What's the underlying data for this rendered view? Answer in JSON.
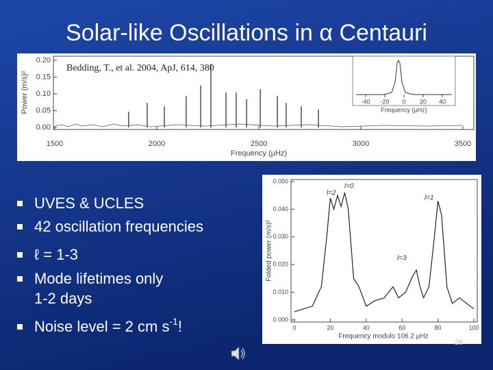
{
  "title": "Solar-like Oscillations in α Centauri",
  "top_chart": {
    "citation": "Bedding, T., et al. 2004, ApJ, 614, 380",
    "ylabel": "Power (m/s)²",
    "xlabel": "Frequency (μHz)",
    "xlim": [
      1500,
      3500
    ],
    "ylim": [
      0,
      0.2
    ],
    "xticks": [
      1500,
      2000,
      2500,
      3000,
      3500
    ],
    "yticks": [
      {
        "value": 0,
        "label": "0.00"
      },
      {
        "value": 0.05,
        "label": "0.05"
      },
      {
        "value": 0.1,
        "label": "0.10"
      },
      {
        "value": 0.15,
        "label": "0.15"
      },
      {
        "value": 0.2,
        "label": "0.20"
      }
    ],
    "peaks": {
      "frequency": [
        1862,
        1953,
        2037,
        2144,
        2215,
        2265,
        2339,
        2389,
        2440,
        2507,
        2591,
        2634,
        2708,
        2792
      ],
      "power": [
        0.047,
        0.073,
        0.063,
        0.094,
        0.125,
        0.19,
        0.104,
        0.104,
        0.084,
        0.114,
        0.094,
        0.073,
        0.063,
        0.053
      ]
    },
    "inset": {
      "xlabel": "Frequency (μHz)",
      "xlim": [
        -50,
        50
      ],
      "xticks": [
        -40,
        -20,
        0,
        20,
        40
      ]
    }
  },
  "bullets": [
    "UVES & UCLES",
    "42 oscillation frequencies",
    "ℓ = 1-3",
    [
      "Mode lifetimes only",
      "1-2 days"
    ],
    {
      "text": "Noise level = 2 cm s",
      "superscript": "-1",
      "end": "!"
    }
  ],
  "folded_chart": {
    "ylabel": "Folded power (m/s)²",
    "xlabel": "Frequency modulo 106.2 μHz",
    "xlim": [
      0,
      100
    ],
    "ylim": [
      0,
      0.05
    ],
    "xticks": [
      0,
      20,
      40,
      60,
      80,
      100
    ],
    "yticks": [
      {
        "value": 0,
        "label": "0.000"
      },
      {
        "value": 0.01,
        "label": "0.010"
      },
      {
        "value": 0.02,
        "label": "0.020"
      },
      {
        "value": 0.03,
        "label": "0.030"
      },
      {
        "value": 0.04,
        "label": "0.040"
      },
      {
        "value": 0.05,
        "label": "0.050"
      }
    ],
    "x": [
      0,
      5,
      10,
      15,
      18,
      20,
      22,
      24,
      26,
      28,
      30,
      33,
      36,
      40,
      45,
      50,
      55,
      58,
      62,
      66,
      68,
      70,
      72,
      75,
      78,
      80,
      82,
      85,
      88,
      92,
      96,
      100
    ],
    "values": [
      0.003,
      0.004,
      0.005,
      0.012,
      0.03,
      0.044,
      0.04,
      0.045,
      0.041,
      0.046,
      0.04,
      0.015,
      0.012,
      0.005,
      0.007,
      0.008,
      0.012,
      0.008,
      0.01,
      0.016,
      0.018,
      0.012,
      0.008,
      0.012,
      0.03,
      0.043,
      0.038,
      0.012,
      0.006,
      0.008,
      0.006,
      0.004
    ],
    "annotations": [
      "l=2",
      "l=0",
      "l=1",
      "l=3"
    ]
  },
  "page_number": "26"
}
